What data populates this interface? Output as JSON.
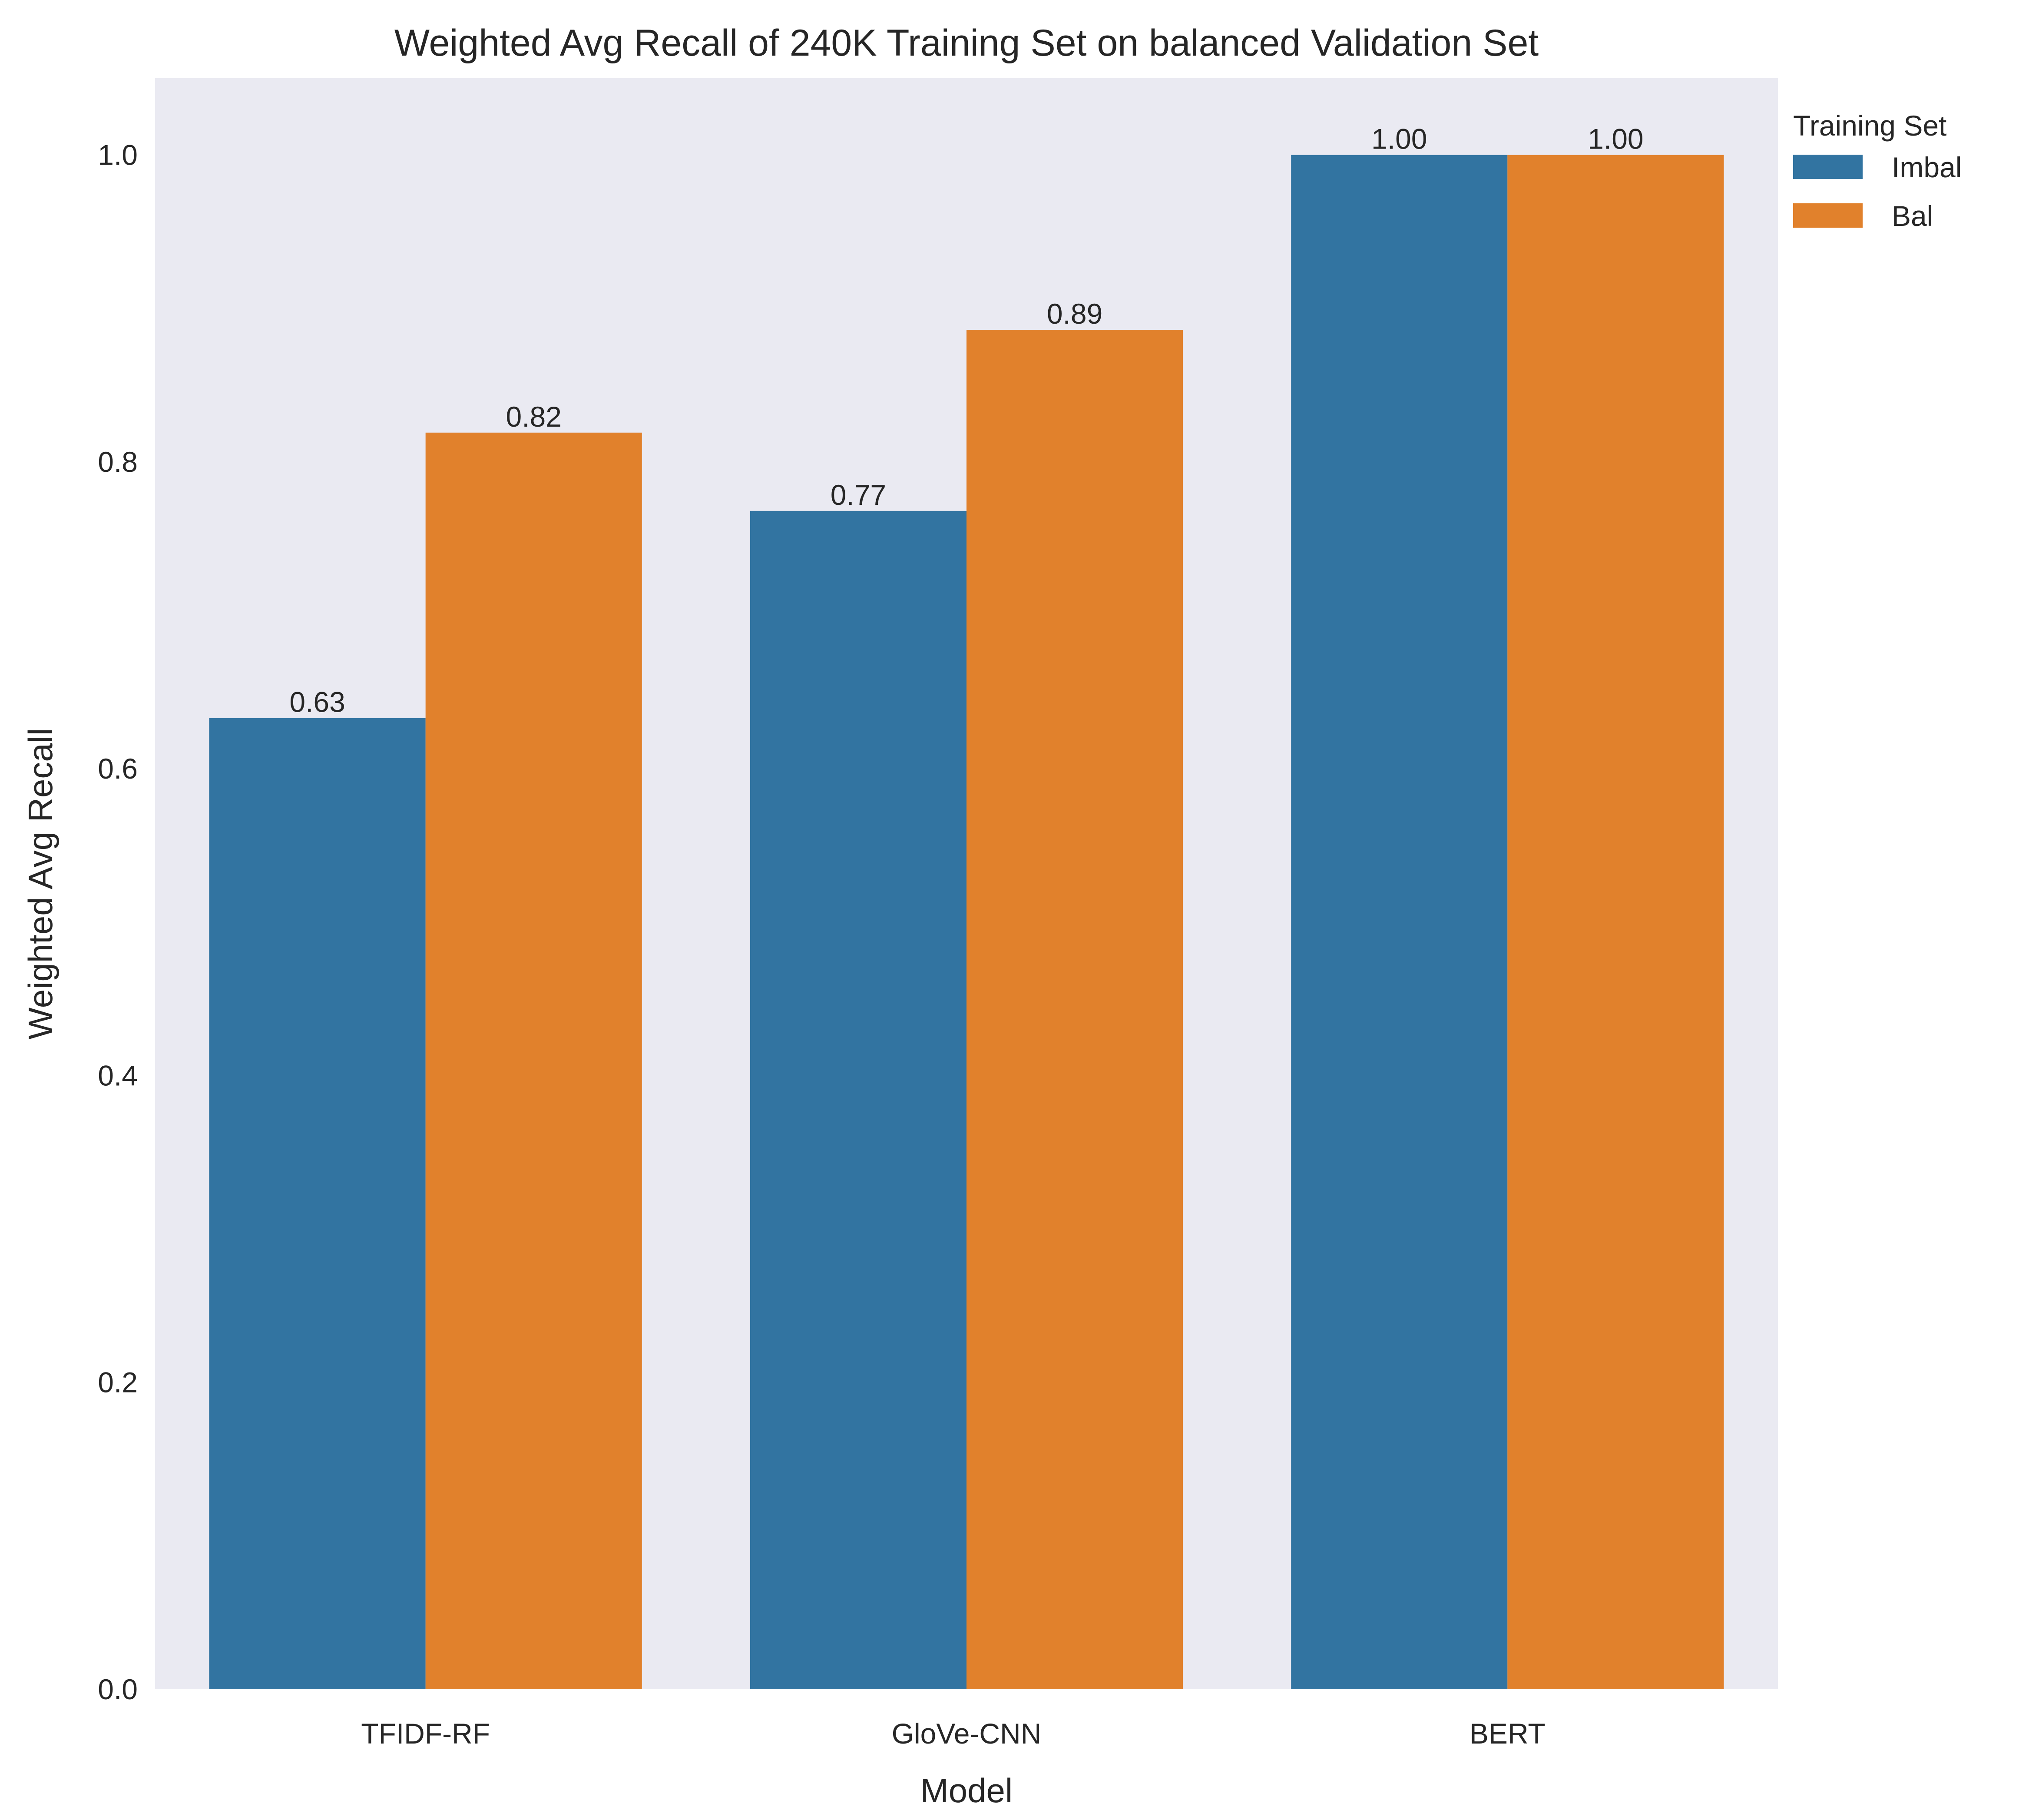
{
  "chart_data": {
    "type": "bar",
    "title": "Weighted Avg Recall of 240K Training Set on balanced Validation Set",
    "xlabel": "Model",
    "ylabel": "Weighted Avg Recall",
    "categories": [
      "TFIDF-RF",
      "GloVe-CNN",
      "BERT"
    ],
    "series": [
      {
        "name": "Imbal",
        "color": "#3274a1",
        "values": [
          0.633,
          0.768,
          1.0
        ],
        "labels": [
          "0.63",
          "0.77",
          "1.00"
        ]
      },
      {
        "name": "Bal",
        "color": "#e1812c",
        "values": [
          0.819,
          0.886,
          1.0
        ],
        "labels": [
          "0.82",
          "0.89",
          "1.00"
        ]
      }
    ],
    "ylim": [
      0,
      1.05
    ],
    "yticks": [
      0.0,
      0.2,
      0.4,
      0.6,
      0.8,
      1.0
    ],
    "ytick_labels": [
      "0.0",
      "0.2",
      "0.4",
      "0.6",
      "0.8",
      "1.0"
    ],
    "legend": {
      "title": "Training Set",
      "placement": "outside-top-right"
    },
    "grid": false,
    "plot_background": "#eaeaf2"
  }
}
